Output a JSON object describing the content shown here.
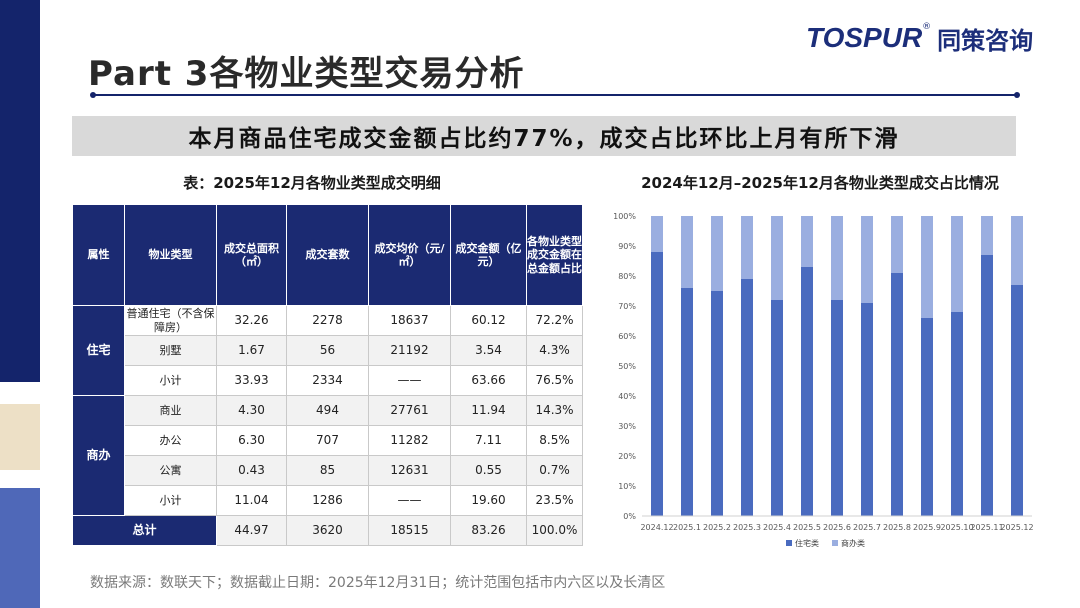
{
  "page_title": "Part 3各物业类型交易分析",
  "logo": {
    "en": "TOSPUR",
    "reg": "®",
    "cn": "同策咨询"
  },
  "headline": "本月商品住宅成交金额占比约77%，成交占比环比上月有所下滑",
  "table_title": "表：2025年12月各物业类型成交明细",
  "table": {
    "headers": [
      "属性",
      "物业类型",
      "成交总面积（㎡）",
      "成交套数",
      "成交均价（元/㎡）",
      "成交金额（亿元）",
      "各物业类型成交金额在总金额占比"
    ],
    "groups": [
      {
        "label": "住宅",
        "rows": [
          {
            "type": "普通住宅（不含保障房）",
            "area": "32.26",
            "units": "2278",
            "price": "18637",
            "amount": "60.12",
            "share": "72.2%"
          },
          {
            "type": "别墅",
            "area": "1.67",
            "units": "56",
            "price": "21192",
            "amount": "3.54",
            "share": "4.3%"
          },
          {
            "type": "小计",
            "area": "33.93",
            "units": "2334",
            "price": "——",
            "amount": "63.66",
            "share": "76.5%"
          }
        ]
      },
      {
        "label": "商办",
        "rows": [
          {
            "type": "商业",
            "area": "4.30",
            "units": "494",
            "price": "27761",
            "amount": "11.94",
            "share": "14.3%"
          },
          {
            "type": "办公",
            "area": "6.30",
            "units": "707",
            "price": "11282",
            "amount": "7.11",
            "share": "8.5%"
          },
          {
            "type": "公寓",
            "area": "0.43",
            "units": "85",
            "price": "12631",
            "amount": "0.55",
            "share": "0.7%"
          },
          {
            "type": "小计",
            "area": "11.04",
            "units": "1286",
            "price": "——",
            "amount": "19.60",
            "share": "23.5%"
          }
        ]
      }
    ],
    "total": {
      "label": "总计",
      "area": "44.97",
      "units": "3620",
      "price": "18515",
      "amount": "83.26",
      "share": "100.0%"
    }
  },
  "chart_title": "2024年12月–2025年12月各物业类型成交占比情况",
  "chart_data": {
    "type": "bar",
    "stacked": true,
    "categories": [
      "2024.12",
      "2025.1",
      "2025.2",
      "2025.3",
      "2025.4",
      "2025.5",
      "2025.6",
      "2025.7",
      "2025.8",
      "2025.9",
      "2025.10",
      "2025.11",
      "2025.12"
    ],
    "series": [
      {
        "name": "住宅类",
        "color": "#4a6bbf",
        "values": [
          88,
          76,
          75,
          79,
          72,
          83,
          72,
          71,
          81,
          66,
          68,
          87,
          77
        ]
      },
      {
        "name": "商办类",
        "color": "#9aaee0",
        "values": [
          12,
          24,
          25,
          21,
          28,
          17,
          28,
          29,
          19,
          34,
          32,
          13,
          23
        ]
      }
    ],
    "yticks": [
      "0%",
      "10%",
      "20%",
      "30%",
      "40%",
      "50%",
      "60%",
      "70%",
      "80%",
      "90%",
      "100%"
    ],
    "ylim": [
      0,
      100
    ],
    "legend_position": "bottom-center"
  },
  "footer": "数据来源：数联天下；数据截止日期：2025年12月31日；统计范围包括市内六区以及长清区"
}
